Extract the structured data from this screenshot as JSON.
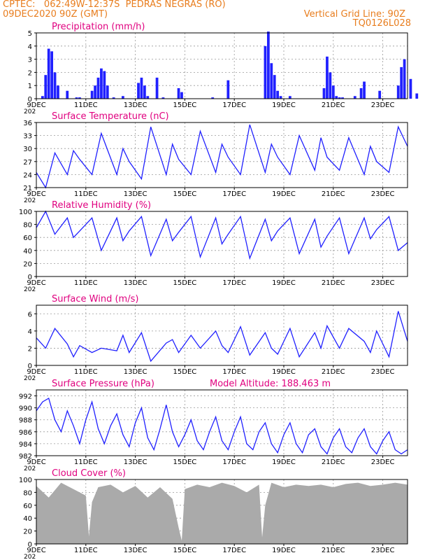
{
  "header": {
    "line1_left": "CPTEC:   062:49W-12:37S  PEDRAS NEGRAS (RO)",
    "line2_left": "09DEC2020 90Z (GMT)",
    "grid_note": "Vertical Grid Line: 90Z",
    "code": "TQ0126L028"
  },
  "colors": {
    "header": "#e87d1e",
    "panel_title": "#e0007f",
    "series": "#2020ff",
    "cloud_fill": "#aaaaaa",
    "axis": "#000000",
    "grid": "#999999"
  },
  "x_axis": {
    "start": "2020-12-09 00:00",
    "end": "2020-12-24 00:00",
    "tick_labels": [
      "9DEC",
      "11DEC",
      "13DEC",
      "15DEC",
      "17DEC",
      "19DEC",
      "21DEC",
      "23DEC"
    ],
    "tick_dates": [
      "2020-12-09",
      "2020-12-11",
      "2020-12-13",
      "2020-12-15",
      "2020-12-17",
      "2020-12-19",
      "2020-12-21",
      "2020-12-23"
    ],
    "year_fragment": "202"
  },
  "extra_label": "Model Altitude: 188.463 m",
  "chart_data": [
    {
      "type": "bar",
      "title": "Precipitation (mm/h)",
      "ylim": [
        0,
        5
      ],
      "yticks": [
        0,
        1,
        2,
        3,
        4,
        5
      ],
      "grid": true,
      "x_dates": [
        "2020-12-09 06:00",
        "2020-12-09 09:00",
        "2020-12-09 12:00",
        "2020-12-09 15:00",
        "2020-12-09 18:00",
        "2020-12-09 21:00",
        "2020-12-10 06:00",
        "2020-12-10 15:00",
        "2020-12-10 18:00",
        "2020-12-11 06:00",
        "2020-12-11 09:00",
        "2020-12-11 12:00",
        "2020-12-11 15:00",
        "2020-12-11 18:00",
        "2020-12-11 21:00",
        "2020-12-12 03:00",
        "2020-12-12 12:00",
        "2020-12-13 03:00",
        "2020-12-13 06:00",
        "2020-12-13 09:00",
        "2020-12-13 12:00",
        "2020-12-13 21:00",
        "2020-12-14 03:00",
        "2020-12-14 18:00",
        "2020-12-14 21:00",
        "2020-12-16 03:00",
        "2020-12-16 18:00",
        "2020-12-18 06:00",
        "2020-12-18 09:00",
        "2020-12-18 12:00",
        "2020-12-18 15:00",
        "2020-12-18 18:00",
        "2020-12-18 21:00",
        "2020-12-19 06:00",
        "2020-12-20 15:00",
        "2020-12-20 18:00",
        "2020-12-20 21:00",
        "2020-12-21 00:00",
        "2020-12-21 03:00",
        "2020-12-21 06:00",
        "2020-12-21 09:00",
        "2020-12-21 21:00",
        "2020-12-22 03:00",
        "2020-12-22 06:00",
        "2020-12-22 21:00",
        "2020-12-23 15:00",
        "2020-12-23 18:00",
        "2020-12-23 21:00",
        "2020-12-24 03:00",
        "2020-12-24 09:00"
      ],
      "values": [
        0.2,
        1.8,
        3.8,
        3.6,
        2.0,
        1.0,
        0.6,
        0.1,
        0.1,
        0.6,
        1.0,
        1.6,
        2.3,
        2.1,
        1.0,
        0.1,
        0.2,
        1.2,
        1.6,
        1.0,
        0.2,
        1.6,
        0.1,
        0.8,
        0.5,
        0.1,
        1.4,
        4.0,
        5.1,
        2.7,
        1.8,
        0.6,
        0.2,
        0.2,
        0.8,
        3.2,
        2.0,
        1.0,
        0.2,
        0.1,
        0.1,
        0.2,
        0.8,
        1.3,
        0.6,
        1.0,
        2.4,
        3.0,
        1.5,
        0.4
      ]
    },
    {
      "type": "line",
      "title": "Surface Temperature (nC)",
      "ylim": [
        21,
        36
      ],
      "yticks": [
        21,
        24,
        27,
        30,
        33,
        36
      ],
      "grid": true,
      "x_dates": [
        "2020-12-09 00:00",
        "2020-12-09 09:00",
        "2020-12-09 18:00",
        "2020-12-10 06:00",
        "2020-12-10 12:00",
        "2020-12-10 18:00",
        "2020-12-11 06:00",
        "2020-12-11 15:00",
        "2020-12-12 06:00",
        "2020-12-12 12:00",
        "2020-12-12 18:00",
        "2020-12-13 06:00",
        "2020-12-13 15:00",
        "2020-12-14 06:00",
        "2020-12-14 12:00",
        "2020-12-14 18:00",
        "2020-12-15 06:00",
        "2020-12-15 15:00",
        "2020-12-16 06:00",
        "2020-12-16 12:00",
        "2020-12-16 18:00",
        "2020-12-17 06:00",
        "2020-12-17 15:00",
        "2020-12-18 06:00",
        "2020-12-18 12:00",
        "2020-12-18 18:00",
        "2020-12-19 06:00",
        "2020-12-19 15:00",
        "2020-12-20 06:00",
        "2020-12-20 12:00",
        "2020-12-20 18:00",
        "2020-12-21 06:00",
        "2020-12-21 15:00",
        "2020-12-22 06:00",
        "2020-12-22 12:00",
        "2020-12-22 18:00",
        "2020-12-23 06:00",
        "2020-12-23 15:00",
        "2020-12-24 00:00"
      ],
      "values": [
        24.5,
        21.0,
        29.0,
        24.0,
        29.5,
        27.5,
        24.0,
        33.5,
        24.0,
        30.0,
        27.0,
        23.0,
        35.0,
        24.0,
        31.0,
        27.5,
        24.0,
        34.0,
        24.5,
        31.0,
        28.0,
        24.0,
        35.5,
        24.5,
        31.0,
        28.0,
        24.0,
        33.0,
        25.0,
        32.5,
        28.0,
        25.0,
        32.5,
        24.0,
        30.5,
        27.0,
        24.5,
        35.0,
        30.5
      ]
    },
    {
      "type": "line",
      "title": "Relative Humidity (%)",
      "ylim": [
        0,
        100
      ],
      "yticks": [
        0,
        20,
        40,
        60,
        80,
        100
      ],
      "grid": true,
      "x_dates": [
        "2020-12-09 00:00",
        "2020-12-09 09:00",
        "2020-12-09 18:00",
        "2020-12-10 06:00",
        "2020-12-10 12:00",
        "2020-12-10 18:00",
        "2020-12-11 06:00",
        "2020-12-11 15:00",
        "2020-12-12 06:00",
        "2020-12-12 12:00",
        "2020-12-12 18:00",
        "2020-12-13 06:00",
        "2020-12-13 15:00",
        "2020-12-14 06:00",
        "2020-12-14 12:00",
        "2020-12-14 18:00",
        "2020-12-15 06:00",
        "2020-12-15 15:00",
        "2020-12-16 06:00",
        "2020-12-16 12:00",
        "2020-12-16 18:00",
        "2020-12-17 06:00",
        "2020-12-17 15:00",
        "2020-12-18 06:00",
        "2020-12-18 12:00",
        "2020-12-18 18:00",
        "2020-12-19 06:00",
        "2020-12-19 15:00",
        "2020-12-20 06:00",
        "2020-12-20 12:00",
        "2020-12-20 18:00",
        "2020-12-21 06:00",
        "2020-12-21 15:00",
        "2020-12-22 06:00",
        "2020-12-22 12:00",
        "2020-12-22 18:00",
        "2020-12-23 06:00",
        "2020-12-23 15:00",
        "2020-12-24 00:00"
      ],
      "values": [
        75,
        100,
        65,
        90,
        60,
        70,
        90,
        40,
        90,
        55,
        70,
        92,
        32,
        88,
        55,
        68,
        92,
        30,
        90,
        50,
        65,
        92,
        28,
        88,
        55,
        70,
        90,
        35,
        88,
        45,
        62,
        90,
        35,
        90,
        58,
        72,
        92,
        40,
        52
      ]
    },
    {
      "type": "line",
      "title": "Surface Wind (m/s)",
      "ylim": [
        0,
        7
      ],
      "yticks": [
        0,
        2,
        4,
        6
      ],
      "grid": true,
      "x_dates": [
        "2020-12-09 00:00",
        "2020-12-09 09:00",
        "2020-12-09 18:00",
        "2020-12-10 06:00",
        "2020-12-10 12:00",
        "2020-12-10 18:00",
        "2020-12-11 06:00",
        "2020-12-11 15:00",
        "2020-12-12 06:00",
        "2020-12-12 12:00",
        "2020-12-12 18:00",
        "2020-12-13 06:00",
        "2020-12-13 15:00",
        "2020-12-14 06:00",
        "2020-12-14 12:00",
        "2020-12-14 18:00",
        "2020-12-15 06:00",
        "2020-12-15 15:00",
        "2020-12-16 06:00",
        "2020-12-16 12:00",
        "2020-12-16 18:00",
        "2020-12-17 06:00",
        "2020-12-17 15:00",
        "2020-12-18 06:00",
        "2020-12-18 12:00",
        "2020-12-18 18:00",
        "2020-12-19 06:00",
        "2020-12-19 15:00",
        "2020-12-20 06:00",
        "2020-12-20 12:00",
        "2020-12-20 18:00",
        "2020-12-21 06:00",
        "2020-12-21 15:00",
        "2020-12-22 06:00",
        "2020-12-22 12:00",
        "2020-12-22 18:00",
        "2020-12-23 06:00",
        "2020-12-23 15:00",
        "2020-12-24 00:00"
      ],
      "values": [
        3.2,
        2.0,
        4.3,
        2.5,
        1.0,
        2.3,
        1.5,
        2.0,
        1.7,
        3.5,
        1.5,
        3.8,
        0.5,
        2.6,
        3.0,
        1.5,
        3.5,
        2.0,
        4.0,
        2.3,
        1.5,
        4.5,
        1.2,
        3.8,
        2.0,
        1.3,
        4.3,
        1.0,
        3.8,
        2.0,
        4.6,
        2.0,
        4.3,
        2.8,
        1.5,
        4.0,
        1.0,
        6.3,
        2.8
      ]
    },
    {
      "type": "line",
      "title": "Surface Pressure (hPa)",
      "ylim": [
        982,
        993
      ],
      "yticks": [
        982,
        984,
        986,
        988,
        990,
        992
      ],
      "grid": true,
      "x_dates": [
        "2020-12-09 00:00",
        "2020-12-09 06:00",
        "2020-12-09 12:00",
        "2020-12-09 18:00",
        "2020-12-10 00:00",
        "2020-12-10 06:00",
        "2020-12-10 12:00",
        "2020-12-10 18:00",
        "2020-12-11 00:00",
        "2020-12-11 06:00",
        "2020-12-11 12:00",
        "2020-12-11 18:00",
        "2020-12-12 00:00",
        "2020-12-12 06:00",
        "2020-12-12 12:00",
        "2020-12-12 18:00",
        "2020-12-13 00:00",
        "2020-12-13 06:00",
        "2020-12-13 12:00",
        "2020-12-13 18:00",
        "2020-12-14 00:00",
        "2020-12-14 06:00",
        "2020-12-14 12:00",
        "2020-12-14 18:00",
        "2020-12-15 00:00",
        "2020-12-15 06:00",
        "2020-12-15 12:00",
        "2020-12-15 18:00",
        "2020-12-16 00:00",
        "2020-12-16 06:00",
        "2020-12-16 12:00",
        "2020-12-16 18:00",
        "2020-12-17 00:00",
        "2020-12-17 06:00",
        "2020-12-17 12:00",
        "2020-12-17 18:00",
        "2020-12-18 00:00",
        "2020-12-18 06:00",
        "2020-12-18 12:00",
        "2020-12-18 18:00",
        "2020-12-19 00:00",
        "2020-12-19 06:00",
        "2020-12-19 12:00",
        "2020-12-19 18:00",
        "2020-12-20 00:00",
        "2020-12-20 06:00",
        "2020-12-20 12:00",
        "2020-12-20 18:00",
        "2020-12-21 00:00",
        "2020-12-21 06:00",
        "2020-12-21 12:00",
        "2020-12-21 18:00",
        "2020-12-22 00:00",
        "2020-12-22 06:00",
        "2020-12-22 12:00",
        "2020-12-22 18:00",
        "2020-12-23 00:00",
        "2020-12-23 06:00",
        "2020-12-23 12:00",
        "2020-12-23 18:00",
        "2020-12-24 00:00"
      ],
      "values": [
        989.5,
        991.0,
        991.6,
        988.0,
        986.0,
        989.5,
        987.0,
        984.0,
        988.0,
        991.0,
        986.5,
        984.0,
        987.0,
        989.0,
        985.5,
        983.5,
        987.5,
        990.0,
        985.0,
        983.0,
        986.5,
        990.5,
        986.0,
        983.5,
        985.5,
        988.0,
        984.5,
        983.0,
        986.0,
        988.5,
        984.5,
        983.0,
        986.0,
        988.5,
        984.0,
        983.0,
        986.0,
        987.5,
        984.0,
        982.5,
        985.5,
        987.5,
        984.0,
        982.5,
        985.5,
        986.5,
        983.5,
        982.3,
        985.0,
        986.5,
        983.5,
        982.5,
        985.0,
        986.5,
        983.5,
        982.3,
        984.5,
        986.0,
        983.0,
        982.3,
        983.0
      ]
    },
    {
      "type": "area",
      "title": "Cloud Cover (%)",
      "ylim": [
        0,
        100
      ],
      "yticks": [
        0,
        20,
        40,
        60,
        80,
        100
      ],
      "grid": true,
      "x_dates": [
        "2020-12-09 00:00",
        "2020-12-09 12:00",
        "2020-12-10 00:00",
        "2020-12-10 12:00",
        "2020-12-11 00:00",
        "2020-12-11 03:00",
        "2020-12-11 06:00",
        "2020-12-11 12:00",
        "2020-12-12 00:00",
        "2020-12-12 12:00",
        "2020-12-13 00:00",
        "2020-12-13 12:00",
        "2020-12-14 00:00",
        "2020-12-14 12:00",
        "2020-12-14 18:00",
        "2020-12-14 21:00",
        "2020-12-15 00:00",
        "2020-12-15 12:00",
        "2020-12-16 00:00",
        "2020-12-16 12:00",
        "2020-12-17 00:00",
        "2020-12-17 12:00",
        "2020-12-18 00:00",
        "2020-12-18 03:00",
        "2020-12-18 06:00",
        "2020-12-18 12:00",
        "2020-12-19 00:00",
        "2020-12-19 12:00",
        "2020-12-20 00:00",
        "2020-12-20 12:00",
        "2020-12-21 00:00",
        "2020-12-21 12:00",
        "2020-12-22 00:00",
        "2020-12-22 12:00",
        "2020-12-23 00:00",
        "2020-12-23 12:00",
        "2020-12-24 00:00"
      ],
      "values": [
        90,
        72,
        95,
        85,
        75,
        12,
        65,
        88,
        92,
        80,
        90,
        72,
        88,
        70,
        25,
        5,
        85,
        92,
        88,
        95,
        90,
        80,
        92,
        10,
        60,
        95,
        88,
        92,
        90,
        92,
        88,
        93,
        95,
        90,
        92,
        95,
        92
      ]
    }
  ]
}
